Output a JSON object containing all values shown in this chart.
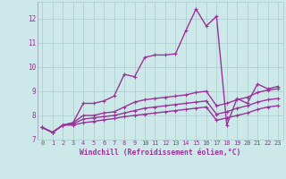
{
  "xlabel": "Windchill (Refroidissement éolien,°C)",
  "background_color": "#cce8e8",
  "line_color": "#993399",
  "grid_color": "#aacccc",
  "xlim": [
    -0.5,
    23.5
  ],
  "ylim": [
    7.0,
    12.7
  ],
  "yticks": [
    7,
    8,
    9,
    10,
    11,
    12
  ],
  "xticks": [
    0,
    1,
    2,
    3,
    4,
    5,
    6,
    7,
    8,
    9,
    10,
    11,
    12,
    13,
    14,
    15,
    16,
    17,
    18,
    19,
    20,
    21,
    22,
    23
  ],
  "series": [
    [
      7.5,
      7.3,
      7.6,
      7.7,
      8.5,
      8.5,
      8.6,
      8.8,
      9.7,
      9.6,
      10.4,
      10.5,
      10.5,
      10.55,
      11.5,
      12.4,
      11.7,
      12.1,
      7.6,
      8.7,
      8.5,
      9.3,
      9.1,
      9.2
    ],
    [
      7.5,
      7.3,
      7.6,
      7.7,
      8.0,
      8.0,
      8.1,
      8.15,
      8.35,
      8.55,
      8.65,
      8.7,
      8.75,
      8.8,
      8.85,
      8.95,
      9.0,
      8.4,
      8.5,
      8.65,
      8.75,
      8.95,
      9.05,
      9.1
    ],
    [
      7.5,
      7.3,
      7.6,
      7.65,
      7.85,
      7.9,
      7.95,
      8.0,
      8.1,
      8.2,
      8.3,
      8.35,
      8.4,
      8.45,
      8.5,
      8.55,
      8.6,
      8.05,
      8.15,
      8.3,
      8.4,
      8.55,
      8.65,
      8.7
    ],
    [
      7.5,
      7.3,
      7.6,
      7.6,
      7.7,
      7.75,
      7.82,
      7.87,
      7.95,
      8.0,
      8.05,
      8.1,
      8.15,
      8.2,
      8.25,
      8.3,
      8.35,
      7.8,
      7.9,
      8.0,
      8.1,
      8.25,
      8.35,
      8.4
    ]
  ]
}
